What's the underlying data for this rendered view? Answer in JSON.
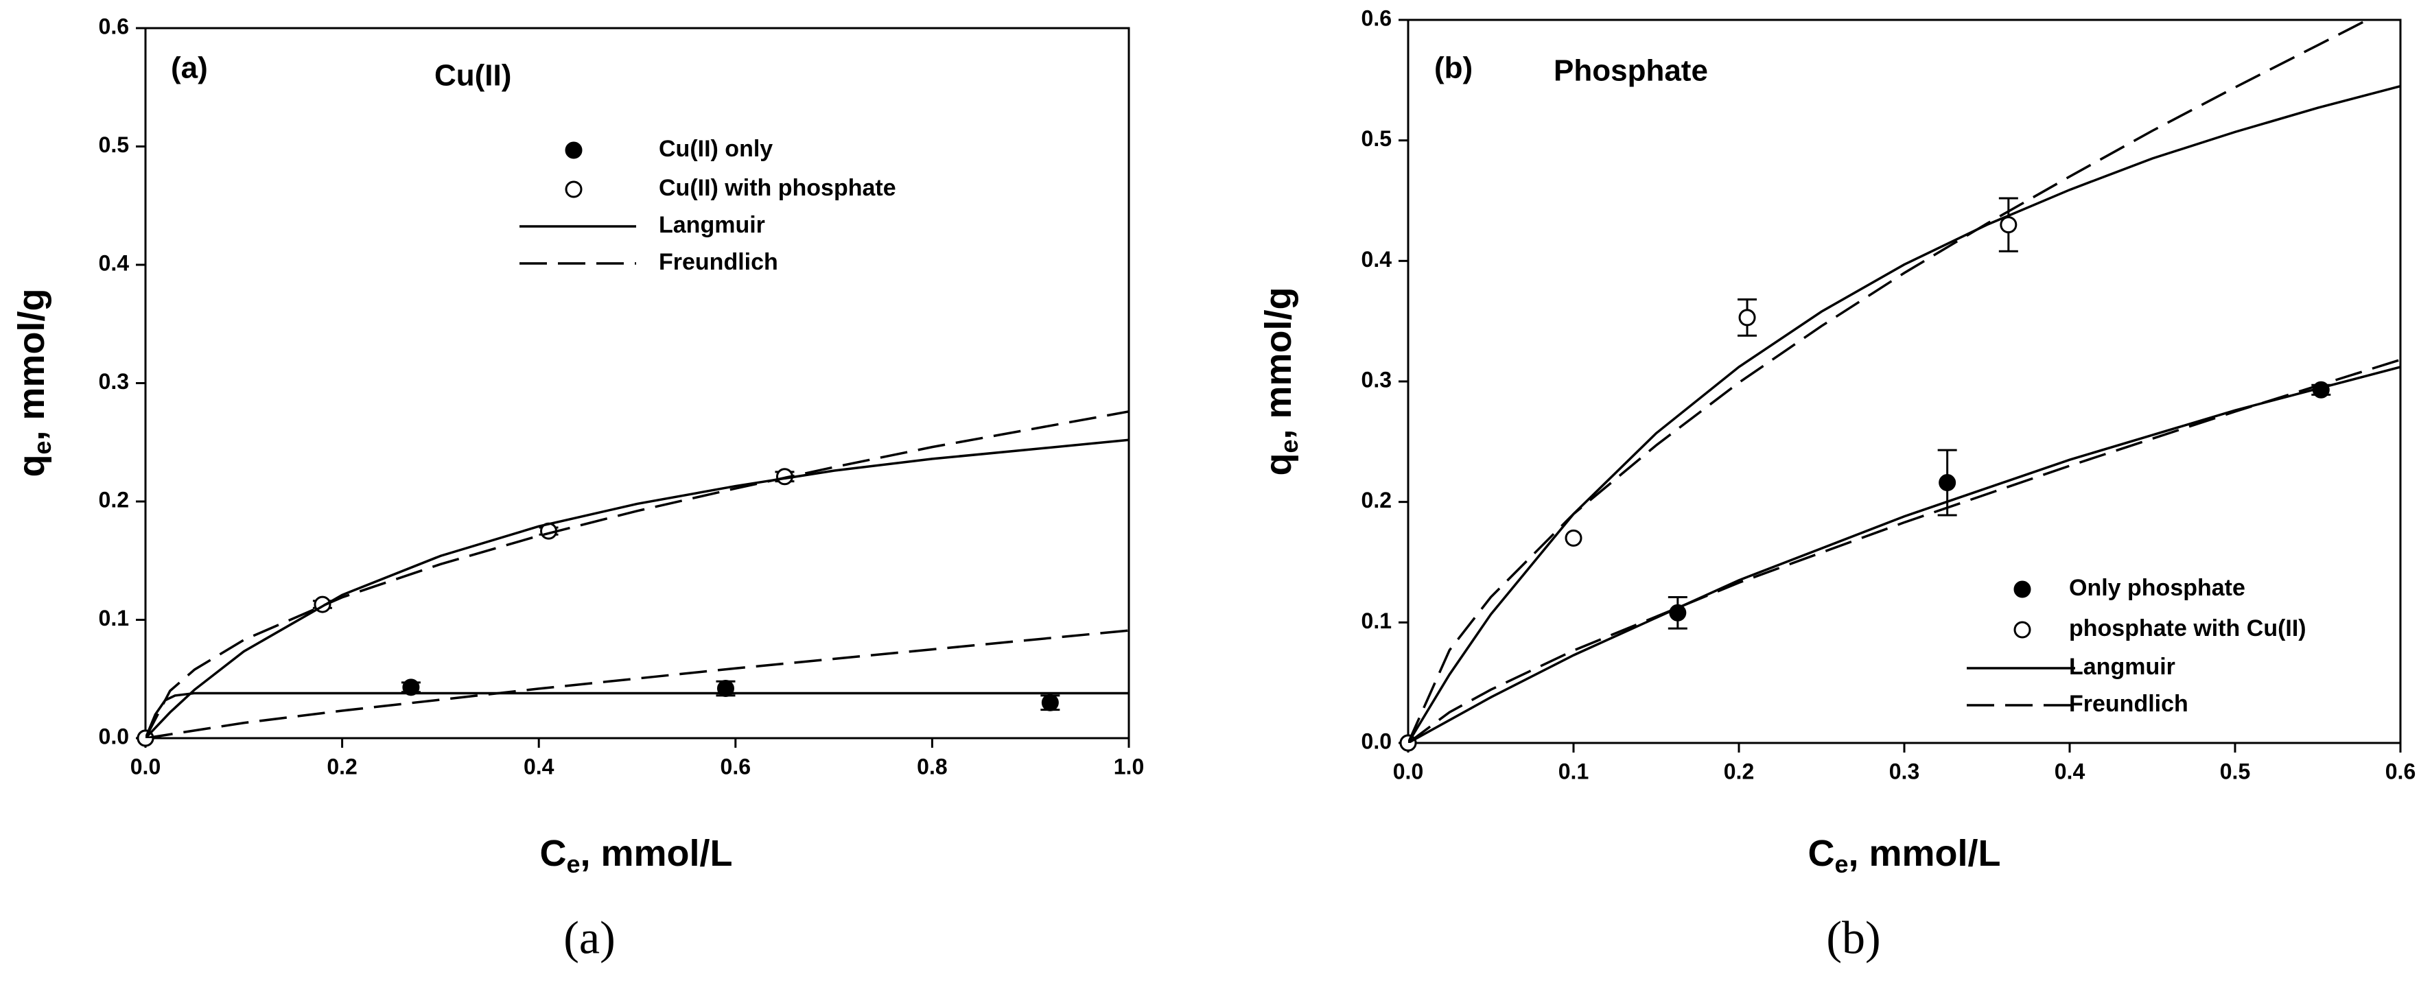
{
  "chart_data": [
    {
      "type": "scatter",
      "panel": "(a)",
      "title": "Cu(II)",
      "caption": "(a)",
      "xlabel": {
        "main": "C",
        "sub": "e",
        "rest": ", mmol/L"
      },
      "ylabel": {
        "main": "q",
        "sub": "e",
        "rest": ", mmol/g"
      },
      "xlim": [
        0,
        1.0
      ],
      "ylim": [
        0,
        0.6
      ],
      "xticks": [
        {
          "value": 0,
          "label": "0.0"
        },
        {
          "value": 0.2,
          "label": "0.2"
        },
        {
          "value": 0.4,
          "label": "0.4"
        },
        {
          "value": 0.6,
          "label": "0.6"
        },
        {
          "value": 0.8,
          "label": "0.8"
        },
        {
          "value": 1.0,
          "label": "1.0"
        }
      ],
      "yticks": [
        {
          "value": 0,
          "label": "0.0"
        },
        {
          "value": 0.1,
          "label": "0.1"
        },
        {
          "value": 0.2,
          "label": "0.2"
        },
        {
          "value": 0.3,
          "label": "0.3"
        },
        {
          "value": 0.4,
          "label": "0.4"
        },
        {
          "value": 0.5,
          "label": "0.5"
        },
        {
          "value": 0.6,
          "label": "0.6"
        }
      ],
      "legend": "top-center",
      "series": [
        {
          "name": "Cu(II) only",
          "style": "filled",
          "color": "#000000",
          "x": [
            0,
            0.27,
            0.59,
            0.92
          ],
          "values": [
            0,
            0.043,
            0.042,
            0.03
          ],
          "errors": [
            null,
            0.004,
            0.006,
            0.006
          ]
        },
        {
          "name": "Cu(II) with phosphate",
          "style": "open",
          "color": "#000000",
          "x": [
            0,
            0.18,
            0.41,
            0.65
          ],
          "values": [
            0,
            0.113,
            0.175,
            0.221
          ],
          "errors": [
            null,
            0.003,
            0.003,
            0.004
          ]
        },
        {
          "name": "Langmuir",
          "style": "solid",
          "color": "#000000",
          "curves": [
            {
              "x": [
                0,
                0.025,
                0.05,
                0.1,
                0.2,
                0.3,
                0.4,
                0.5,
                0.6,
                0.7,
                0.8,
                0.9,
                1.0
              ],
              "values": [
                0,
                0.0218,
                0.041,
                0.0733,
                0.121,
                0.154,
                0.179,
                0.198,
                0.213,
                0.226,
                0.236,
                0.244,
                0.252
              ]
            },
            {
              "x": [
                0,
                0.01,
                0.02,
                0.03,
                0.05,
                1.0
              ],
              "values": [
                0,
                0.02,
                0.032,
                0.036,
                0.038,
                0.038
              ]
            }
          ]
        },
        {
          "name": "Freundlich",
          "style": "dashed",
          "color": "#000000",
          "curves": [
            {
              "x": [
                0,
                0.025,
                0.05,
                0.1,
                0.2,
                0.3,
                0.4,
                0.5,
                0.6,
                0.7,
                0.8,
                0.9,
                1.0
              ],
              "values": [
                0,
                0.04,
                0.058,
                0.083,
                0.119,
                0.147,
                0.171,
                0.192,
                0.211,
                0.229,
                0.246,
                0.261,
                0.276
              ]
            },
            {
              "x": [
                0,
                0.1,
                0.2,
                0.4,
                0.6,
                0.8,
                1.0
              ],
              "values": [
                0,
                0.0129,
                0.0232,
                0.0418,
                0.059,
                0.075,
                0.091
              ]
            }
          ]
        }
      ]
    },
    {
      "type": "scatter",
      "panel": "(b)",
      "title": "Phosphate",
      "caption": "(b)",
      "xlabel": {
        "main": "C",
        "sub": "e",
        "rest": ", mmol/L"
      },
      "ylabel": {
        "main": "q",
        "sub": "e",
        "rest": ", mmol/g"
      },
      "xlim": [
        0,
        0.6
      ],
      "ylim": [
        0,
        0.6
      ],
      "xticks": [
        {
          "value": 0,
          "label": "0.0"
        },
        {
          "value": 0.1,
          "label": "0.1"
        },
        {
          "value": 0.2,
          "label": "0.2"
        },
        {
          "value": 0.3,
          "label": "0.3"
        },
        {
          "value": 0.4,
          "label": "0.4"
        },
        {
          "value": 0.5,
          "label": "0.5"
        },
        {
          "value": 0.6,
          "label": "0.6"
        }
      ],
      "yticks": [
        {
          "value": 0,
          "label": "0.0"
        },
        {
          "value": 0.1,
          "label": "0.1"
        },
        {
          "value": 0.2,
          "label": "0.2"
        },
        {
          "value": 0.3,
          "label": "0.3"
        },
        {
          "value": 0.4,
          "label": "0.4"
        },
        {
          "value": 0.5,
          "label": "0.5"
        },
        {
          "value": 0.6,
          "label": "0.6"
        }
      ],
      "legend": "lower-right",
      "series": [
        {
          "name": "Only phosphate",
          "style": "filled",
          "color": "#000000",
          "x": [
            0,
            0.163,
            0.326,
            0.552
          ],
          "values": [
            0,
            0.108,
            0.216,
            0.293
          ],
          "errors": [
            null,
            0.013,
            0.027,
            0.004
          ]
        },
        {
          "name": "phosphate with Cu(II)",
          "style": "open",
          "color": "#000000",
          "x": [
            0,
            0.1,
            0.205,
            0.363
          ],
          "values": [
            0,
            0.17,
            0.353,
            0.43
          ],
          "errors": [
            null,
            null,
            0.015,
            0.022
          ]
        },
        {
          "name": "Langmuir",
          "style": "solid",
          "color": "#000000",
          "curves": [
            {
              "x": [
                0,
                0.025,
                0.05,
                0.1,
                0.15,
                0.2,
                0.25,
                0.3,
                0.35,
                0.4,
                0.45,
                0.5,
                0.55,
                0.6
              ],
              "values": [
                0,
                0.0568,
                0.1067,
                0.19,
                0.257,
                0.312,
                0.358,
                0.397,
                0.43,
                0.459,
                0.485,
                0.507,
                0.527,
                0.545
              ]
            },
            {
              "x": [
                0,
                0.05,
                0.1,
                0.2,
                0.3,
                0.4,
                0.5,
                0.6
              ],
              "values": [
                0,
                0.0379,
                0.0728,
                0.135,
                0.188,
                0.235,
                0.276,
                0.312
              ]
            }
          ]
        },
        {
          "name": "Freundlich",
          "style": "dashed",
          "color": "#000000",
          "curves": [
            {
              "x": [
                0,
                0.025,
                0.05,
                0.1,
                0.15,
                0.2,
                0.25,
                0.3,
                0.35,
                0.4,
                0.45,
                0.5,
                0.55,
                0.58
              ],
              "values": [
                0,
                0.077,
                0.121,
                0.19,
                0.247,
                0.299,
                0.346,
                0.39,
                0.431,
                0.47,
                0.508,
                0.544,
                0.579,
                0.6
              ]
            },
            {
              "x": [
                0,
                0.025,
                0.05,
                0.1,
                0.2,
                0.3,
                0.4,
                0.5,
                0.6
              ],
              "values": [
                0,
                0.0255,
                0.0442,
                0.0767,
                0.133,
                0.183,
                0.23,
                0.275,
                0.318
              ]
            }
          ]
        }
      ]
    }
  ]
}
